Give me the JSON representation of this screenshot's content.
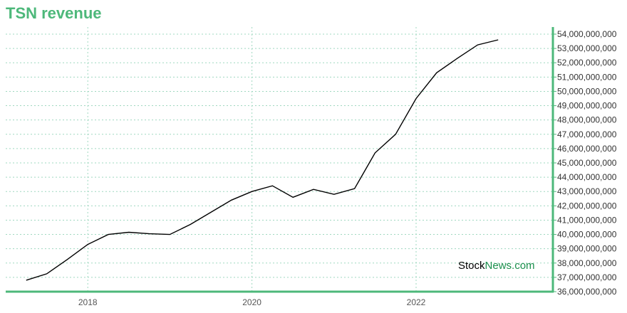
{
  "title": "TSN revenue",
  "watermark": {
    "part1": "Stock",
    "part2": "News.com"
  },
  "colors": {
    "title": "#4db87a",
    "axis": "#4db87a",
    "line": "#000000",
    "grid": "#9fd8c0"
  },
  "chart_data": {
    "type": "line",
    "title": "TSN revenue",
    "xlabel": "",
    "ylabel": "",
    "x_ticks": [
      "2018",
      "2020",
      "2022"
    ],
    "y_ticks": [
      "36,000,000,000",
      "37,000,000,000",
      "38,000,000,000",
      "39,000,000,000",
      "40,000,000,000",
      "41,000,000,000",
      "42,000,000,000",
      "43,000,000,000",
      "44,000,000,000",
      "45,000,000,000",
      "46,000,000,000",
      "47,000,000,000",
      "48,000,000,000",
      "49,000,000,000",
      "50,000,000,000",
      "51,000,000,000",
      "52,000,000,000",
      "53,000,000,000",
      "54,000,000,000"
    ],
    "ylim": [
      36000000000,
      54000000000
    ],
    "xlim": [
      "2017-01",
      "2023-09"
    ],
    "grid": true,
    "y_axis_side": "right",
    "series": [
      {
        "x": [
          "2017-04",
          "2017-07",
          "2017-10",
          "2018-01",
          "2018-04",
          "2018-07",
          "2018-10",
          "2019-01",
          "2019-04",
          "2019-07",
          "2019-10",
          "2020-01",
          "2020-04",
          "2020-07",
          "2020-10",
          "2021-01",
          "2021-04",
          "2021-07",
          "2021-10",
          "2022-01",
          "2022-04",
          "2022-07",
          "2022-10",
          "2023-01"
        ],
        "values": [
          36800000000,
          37250000000,
          38250000000,
          39300000000,
          40000000000,
          40150000000,
          40050000000,
          40000000000,
          40700000000,
          41550000000,
          42400000000,
          43000000000,
          43400000000,
          42600000000,
          43150000000,
          42800000000,
          43200000000,
          45700000000,
          47000000000,
          49500000000,
          51300000000,
          52300000000,
          53250000000,
          53600000000
        ]
      }
    ]
  }
}
